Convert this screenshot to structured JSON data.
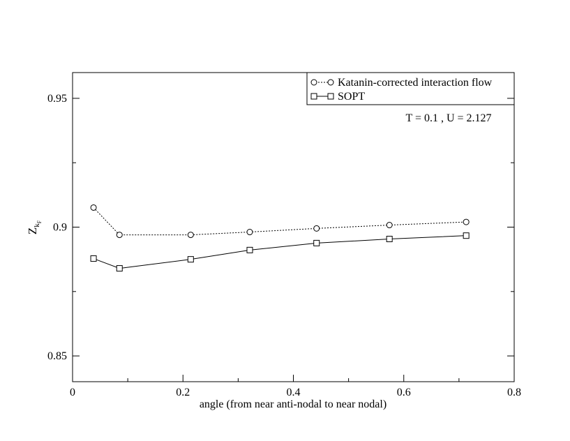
{
  "chart_data": {
    "type": "line",
    "x_label": "angle (from near anti-nodal to near nodal)",
    "y_label": "Z",
    "y_label_sub": "k",
    "y_label_subsub": "F",
    "annotation": "T = 0.1 , U = 2.127",
    "x": [
      0.038,
      0.085,
      0.214,
      0.321,
      0.442,
      0.574,
      0.713
    ],
    "series": [
      {
        "name": "Katanin-corrected interaction flow",
        "color": "#000000",
        "marker": "circle",
        "dash": "dotted",
        "values": [
          0.9076,
          0.897,
          0.897,
          0.8981,
          0.8995,
          0.9008,
          0.902
        ]
      },
      {
        "name": "SOPT",
        "color": "#000000",
        "marker": "square",
        "dash": "solid",
        "values": [
          0.8878,
          0.884,
          0.8875,
          0.8911,
          0.8938,
          0.8954,
          0.8967
        ]
      }
    ],
    "xlim": [
      0,
      0.8
    ],
    "xticks": [
      0,
      0.2,
      0.4,
      0.6,
      0.8
    ],
    "ylim": [
      0.84,
      0.96
    ],
    "yticks": [
      0.85,
      0.9,
      0.95
    ],
    "legend": "top-right"
  }
}
